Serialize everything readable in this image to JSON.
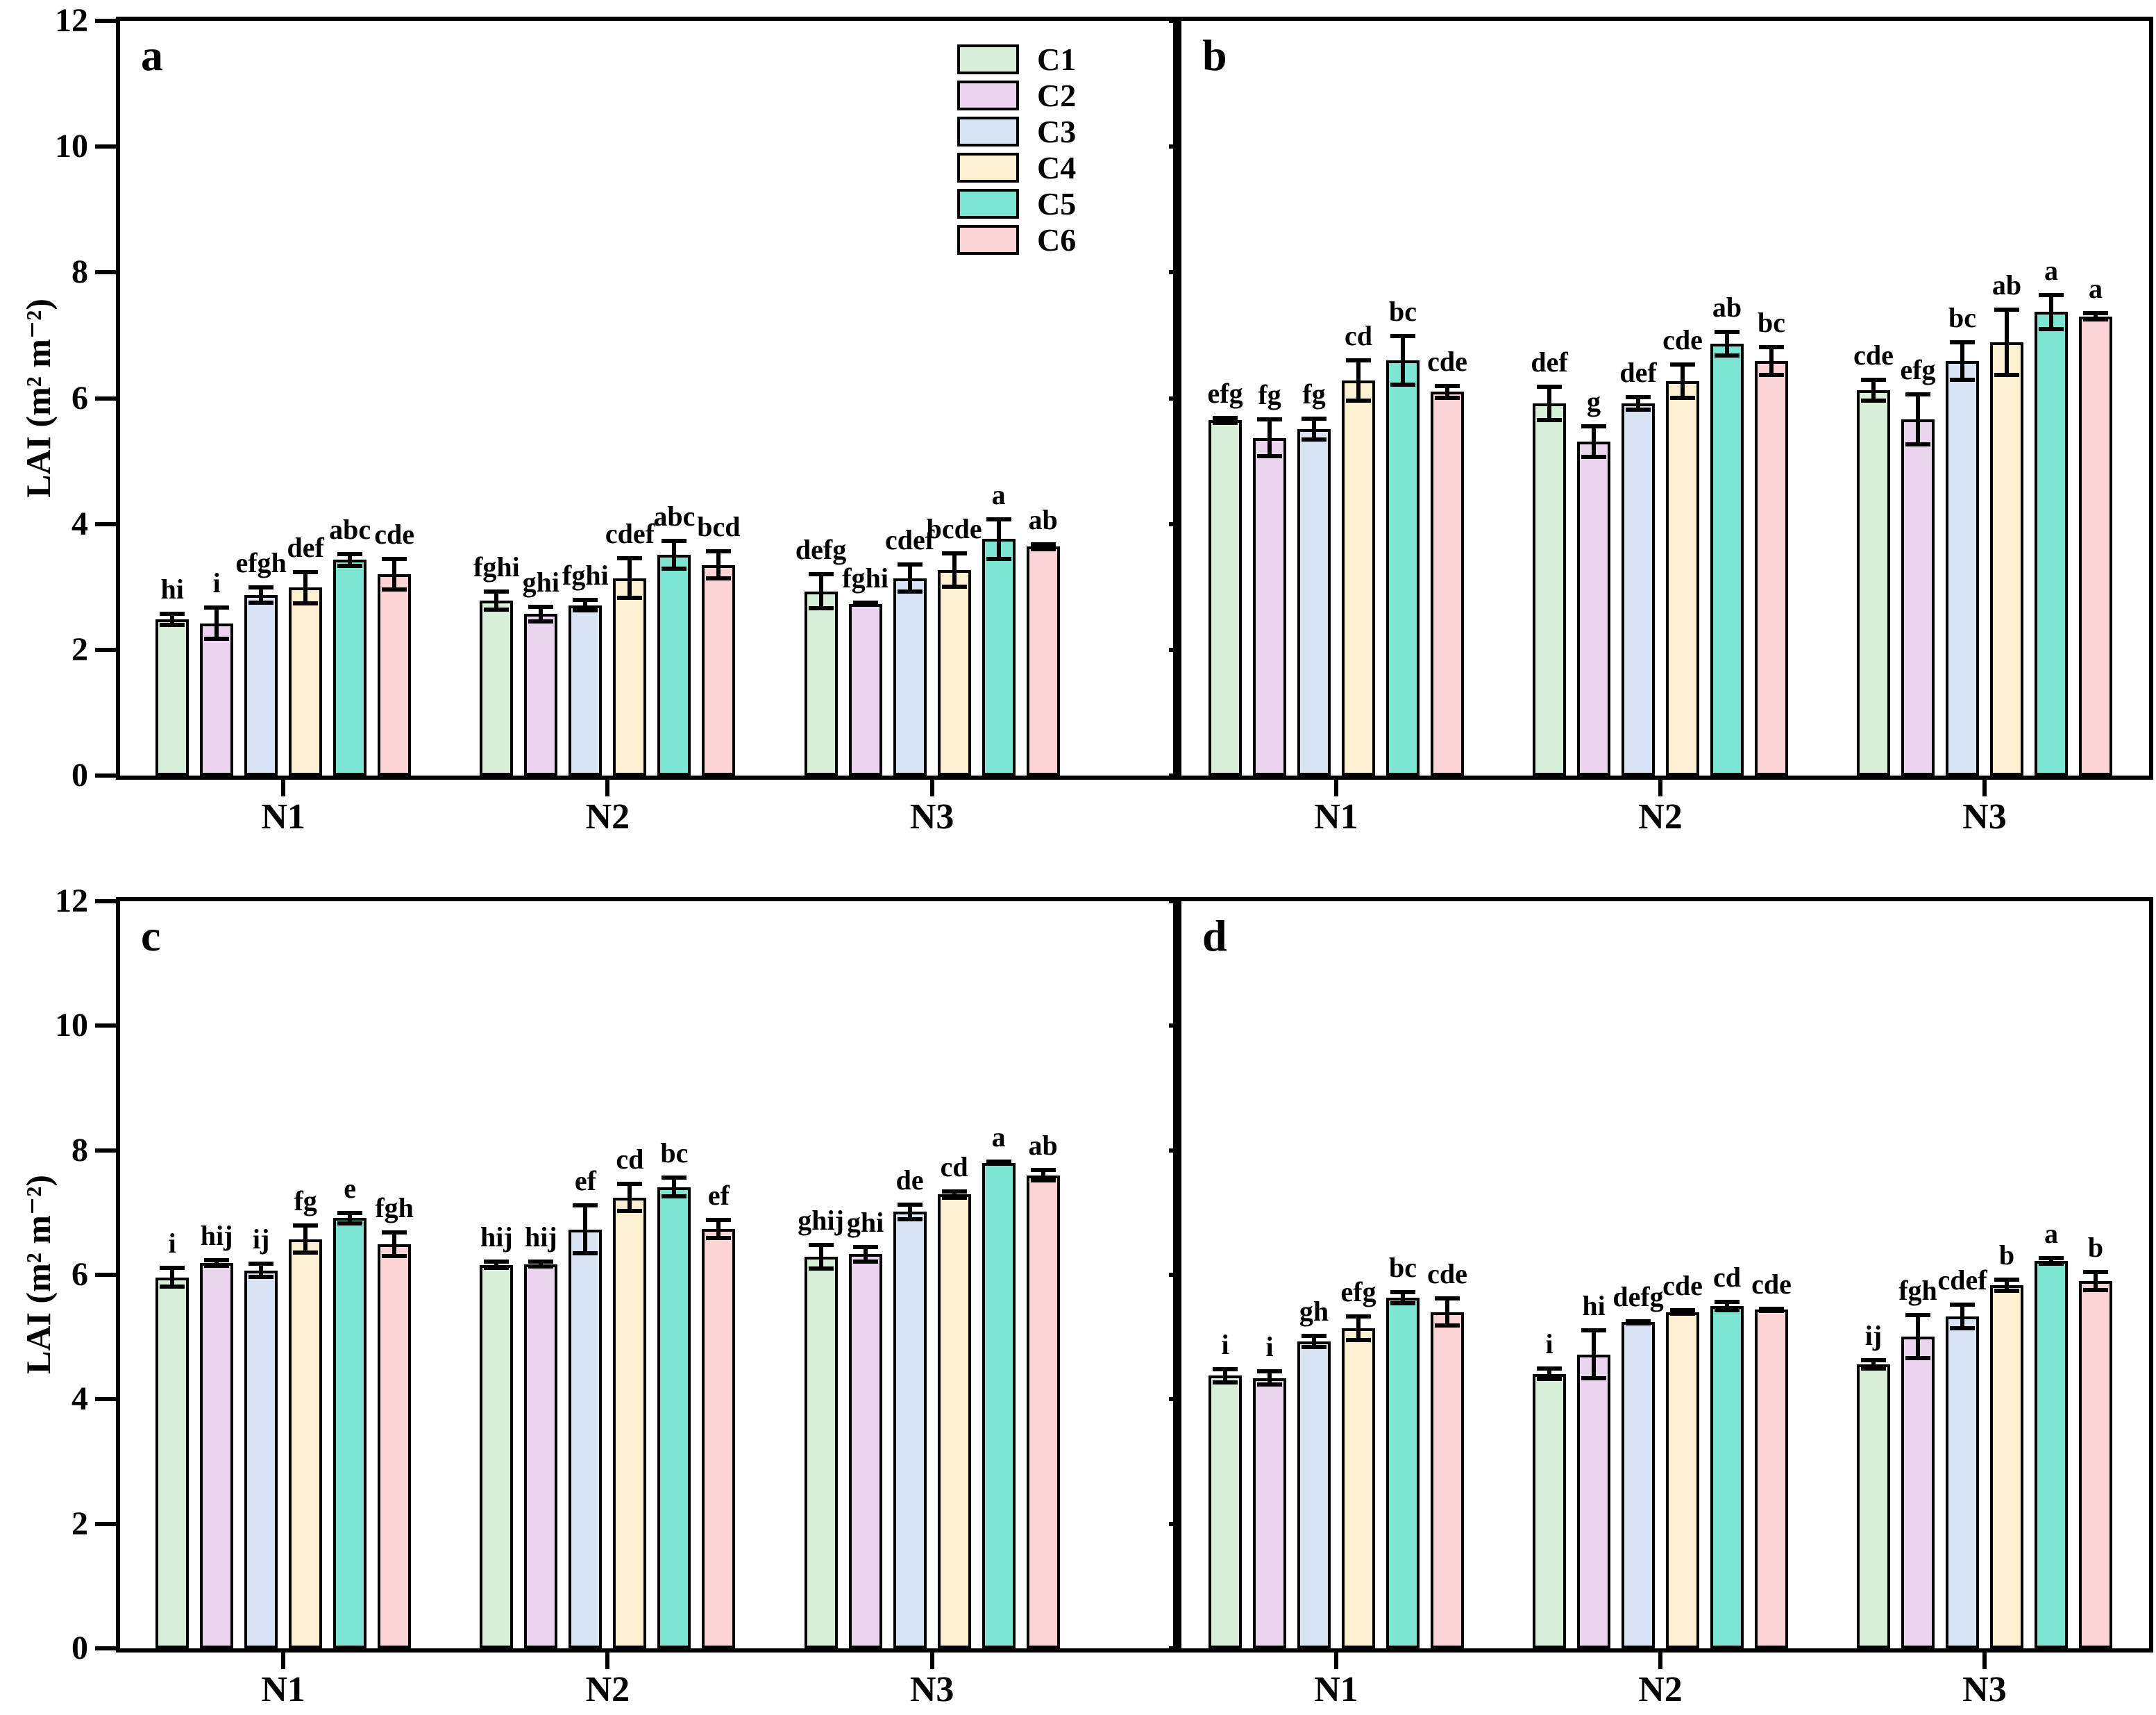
{
  "ylabel": "LAI (m² m⁻²)",
  "legend": [
    "C1",
    "C2",
    "C3",
    "C4",
    "C5",
    "C6"
  ],
  "colors": {
    "C1": "#d8f0da",
    "C2": "#ead4ee",
    "C3": "#d8e3f3",
    "C4": "#fdf0d0",
    "C5": "#7ce6d2",
    "C6": "#fcd4d8"
  },
  "chart_data": [
    {
      "panel_label": "a",
      "type": "bar",
      "ylabel": "LAI (m² m⁻²)",
      "ylim": [
        0,
        12
      ],
      "yticks": [
        0,
        2,
        4,
        6,
        8,
        10,
        12
      ],
      "categories": [
        "N1",
        "N2",
        "N3"
      ],
      "legend_position": "top-right-inside",
      "series": [
        {
          "name": "C1",
          "values": [
            2.48,
            2.78,
            2.93
          ],
          "errors": [
            0.12,
            0.18,
            0.3
          ],
          "letters": [
            "hi",
            "fghi",
            "defg"
          ]
        },
        {
          "name": "C2",
          "values": [
            2.42,
            2.57,
            2.73
          ],
          "errors": [
            0.28,
            0.15,
            0.05
          ],
          "letters": [
            "i",
            "ghi",
            "fghi"
          ]
        },
        {
          "name": "C3",
          "values": [
            2.87,
            2.71,
            3.14
          ],
          "errors": [
            0.15,
            0.12,
            0.25
          ],
          "letters": [
            "efgh",
            "fghi",
            "cdef"
          ]
        },
        {
          "name": "C4",
          "values": [
            2.99,
            3.14,
            3.27
          ],
          "errors": [
            0.28,
            0.35,
            0.3
          ],
          "letters": [
            "def",
            "cdef",
            "bcde"
          ]
        },
        {
          "name": "C5",
          "values": [
            3.43,
            3.51,
            3.76
          ],
          "errors": [
            0.13,
            0.25,
            0.35
          ],
          "letters": [
            "abc",
            "abc",
            "a"
          ]
        },
        {
          "name": "C6",
          "values": [
            3.2,
            3.35,
            3.64
          ],
          "errors": [
            0.28,
            0.25,
            0.07
          ],
          "letters": [
            "cde",
            "bcd",
            "ab"
          ]
        }
      ]
    },
    {
      "panel_label": "b",
      "type": "bar",
      "ylabel": "",
      "ylim": [
        0,
        12
      ],
      "yticks": [
        0,
        2,
        4,
        6,
        8,
        10,
        12
      ],
      "categories": [
        "N1",
        "N2",
        "N3"
      ],
      "series": [
        {
          "name": "C1",
          "values": [
            5.65,
            5.92,
            6.13
          ],
          "errors": [
            0.07,
            0.3,
            0.2
          ],
          "letters": [
            "efg",
            "def",
            "cde"
          ]
        },
        {
          "name": "C2",
          "values": [
            5.37,
            5.31,
            5.66
          ],
          "errors": [
            0.33,
            0.28,
            0.43
          ],
          "letters": [
            "fg",
            "g",
            "efg"
          ]
        },
        {
          "name": "C3",
          "values": [
            5.51,
            5.92,
            6.59
          ],
          "errors": [
            0.2,
            0.13,
            0.33
          ],
          "letters": [
            "fg",
            "def",
            "bc"
          ]
        },
        {
          "name": "C4",
          "values": [
            6.28,
            6.27,
            6.89
          ],
          "errors": [
            0.35,
            0.3,
            0.55
          ],
          "letters": [
            "cd",
            "cde",
            "ab"
          ]
        },
        {
          "name": "C5",
          "values": [
            6.6,
            6.87,
            7.37
          ],
          "errors": [
            0.42,
            0.22,
            0.3
          ],
          "letters": [
            "bc",
            "ab",
            "a"
          ]
        },
        {
          "name": "C6",
          "values": [
            6.1,
            6.59,
            7.3
          ],
          "errors": [
            0.13,
            0.25,
            0.08
          ],
          "letters": [
            "cde",
            "bc",
            "a"
          ]
        }
      ]
    },
    {
      "panel_label": "c",
      "type": "bar",
      "ylabel": "LAI (m² m⁻²)",
      "ylim": [
        0,
        12
      ],
      "yticks": [
        0,
        2,
        4,
        6,
        8,
        10,
        12
      ],
      "categories": [
        "N1",
        "N2",
        "N3"
      ],
      "series": [
        {
          "name": "C1",
          "values": [
            5.96,
            6.16,
            6.29
          ],
          "errors": [
            0.18,
            0.08,
            0.22
          ],
          "letters": [
            "i",
            "hij",
            "ghij"
          ]
        },
        {
          "name": "C2",
          "values": [
            6.19,
            6.17,
            6.33
          ],
          "errors": [
            0.08,
            0.07,
            0.15
          ],
          "letters": [
            "hij",
            "hij",
            "ghi"
          ]
        },
        {
          "name": "C3",
          "values": [
            6.07,
            6.73,
            7.01
          ],
          "errors": [
            0.14,
            0.42,
            0.15
          ],
          "letters": [
            "ij",
            "ef",
            "de"
          ]
        },
        {
          "name": "C4",
          "values": [
            6.57,
            7.24,
            7.29
          ],
          "errors": [
            0.25,
            0.25,
            0.08
          ],
          "letters": [
            "fg",
            "cd",
            "cd"
          ]
        },
        {
          "name": "C5",
          "values": [
            6.91,
            7.41,
            7.8
          ],
          "errors": [
            0.12,
            0.18,
            0.05
          ],
          "letters": [
            "e",
            "bc",
            "a"
          ]
        },
        {
          "name": "C6",
          "values": [
            6.49,
            6.74,
            7.6
          ],
          "errors": [
            0.22,
            0.18,
            0.12
          ],
          "letters": [
            "fgh",
            "ef",
            "ab"
          ]
        }
      ]
    },
    {
      "panel_label": "d",
      "type": "bar",
      "ylabel": "",
      "ylim": [
        0,
        12
      ],
      "yticks": [
        0,
        2,
        4,
        6,
        8,
        10,
        12
      ],
      "categories": [
        "N1",
        "N2",
        "N3"
      ],
      "series": [
        {
          "name": "C1",
          "values": [
            4.38,
            4.41,
            4.56
          ],
          "errors": [
            0.14,
            0.12,
            0.1
          ],
          "letters": [
            "i",
            "i",
            "ij"
          ]
        },
        {
          "name": "C2",
          "values": [
            4.34,
            4.72,
            5.01
          ],
          "errors": [
            0.14,
            0.42,
            0.38
          ],
          "letters": [
            "i",
            "hi",
            "fgh"
          ]
        },
        {
          "name": "C3",
          "values": [
            4.93,
            5.24,
            5.33
          ],
          "errors": [
            0.12,
            0.05,
            0.22
          ],
          "letters": [
            "gh",
            "defg",
            "cdef"
          ]
        },
        {
          "name": "C4",
          "values": [
            5.14,
            5.4,
            5.83
          ],
          "errors": [
            0.22,
            0.06,
            0.12
          ],
          "letters": [
            "efg",
            "cde",
            "b"
          ]
        },
        {
          "name": "C5",
          "values": [
            5.63,
            5.5,
            6.22
          ],
          "errors": [
            0.12,
            0.1,
            0.08
          ],
          "letters": [
            "bc",
            "cd",
            "a"
          ]
        },
        {
          "name": "C6",
          "values": [
            5.4,
            5.44,
            5.9
          ],
          "errors": [
            0.25,
            0.05,
            0.18
          ],
          "letters": [
            "cde",
            "cde",
            "b"
          ]
        }
      ]
    }
  ]
}
